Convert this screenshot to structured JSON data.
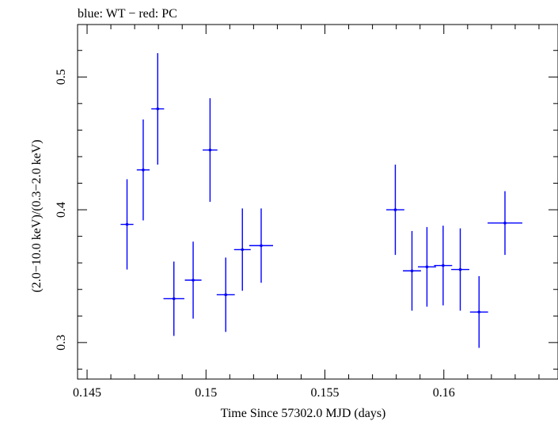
{
  "chart_data": {
    "type": "scatter",
    "title": "blue: WT − red: PC",
    "xlabel": "Time Since 57302.0 MJD (days)",
    "ylabel": "(2.0−10.0 keV)/(0.3−2.0 keV)",
    "xlim": [
      0.1446,
      0.1648
    ],
    "ylim": [
      0.2725,
      0.5395
    ],
    "x_ticks": [
      0.145,
      0.15,
      0.155,
      0.16
    ],
    "x_tick_labels": [
      "0.145",
      "0.15",
      "0.155",
      "0.16"
    ],
    "y_ticks": [
      0.3,
      0.4,
      0.5
    ],
    "y_tick_labels": [
      "0.3",
      "0.4",
      "0.5"
    ],
    "grid": false,
    "series": [
      {
        "color": "#0000ff",
        "points": [
          {
            "x": 0.14668,
            "xerr": 0.00027,
            "y": 0.389,
            "yerr": 0.034
          },
          {
            "x": 0.14736,
            "xerr": 0.00027,
            "y": 0.43,
            "yerr": 0.038
          },
          {
            "x": 0.14797,
            "xerr": 0.00027,
            "y": 0.476,
            "yerr": 0.042
          },
          {
            "x": 0.14865,
            "xerr": 0.00044,
            "y": 0.333,
            "yerr": 0.028
          },
          {
            "x": 0.14946,
            "xerr": 0.00035,
            "y": 0.347,
            "yerr": 0.029
          },
          {
            "x": 0.15017,
            "xerr": 0.00031,
            "y": 0.445,
            "yerr": 0.039
          },
          {
            "x": 0.15083,
            "xerr": 0.00038,
            "y": 0.336,
            "yerr": 0.028
          },
          {
            "x": 0.15153,
            "xerr": 0.00035,
            "y": 0.37,
            "yerr": 0.031
          },
          {
            "x": 0.15232,
            "xerr": 0.0005,
            "y": 0.373,
            "yerr": 0.028
          },
          {
            "x": 0.15796,
            "xerr": 0.00038,
            "y": 0.4,
            "yerr": 0.034
          },
          {
            "x": 0.15866,
            "xerr": 0.00038,
            "y": 0.354,
            "yerr": 0.03
          },
          {
            "x": 0.15929,
            "xerr": 0.00038,
            "y": 0.357,
            "yerr": 0.03
          },
          {
            "x": 0.15997,
            "xerr": 0.00038,
            "y": 0.358,
            "yerr": 0.03
          },
          {
            "x": 0.16069,
            "xerr": 0.00038,
            "y": 0.355,
            "yerr": 0.031
          },
          {
            "x": 0.16148,
            "xerr": 0.00038,
            "y": 0.323,
            "yerr": 0.027
          },
          {
            "x": 0.16257,
            "xerr": 0.00073,
            "y": 0.39,
            "yerr": 0.024
          }
        ]
      }
    ]
  }
}
